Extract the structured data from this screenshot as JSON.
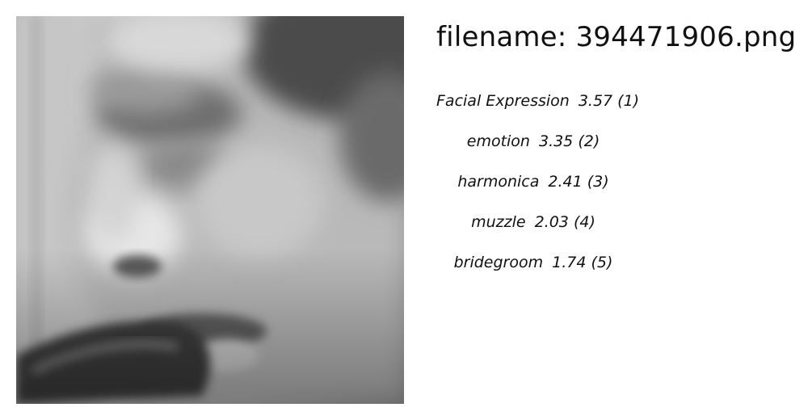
{
  "filename_label": "filename: 394471906.png",
  "image": {
    "icon": "grayscale-face-profile-photo"
  },
  "tags": [
    {
      "label": "Facial Expression",
      "score": "3.57 (1)"
    },
    {
      "label": "emotion",
      "score": "3.35 (2)"
    },
    {
      "label": "harmonica",
      "score": "2.41 (3)"
    },
    {
      "label": "muzzle",
      "score": "2.03 (4)"
    },
    {
      "label": "bridegroom",
      "score": "1.74 (5)"
    }
  ]
}
